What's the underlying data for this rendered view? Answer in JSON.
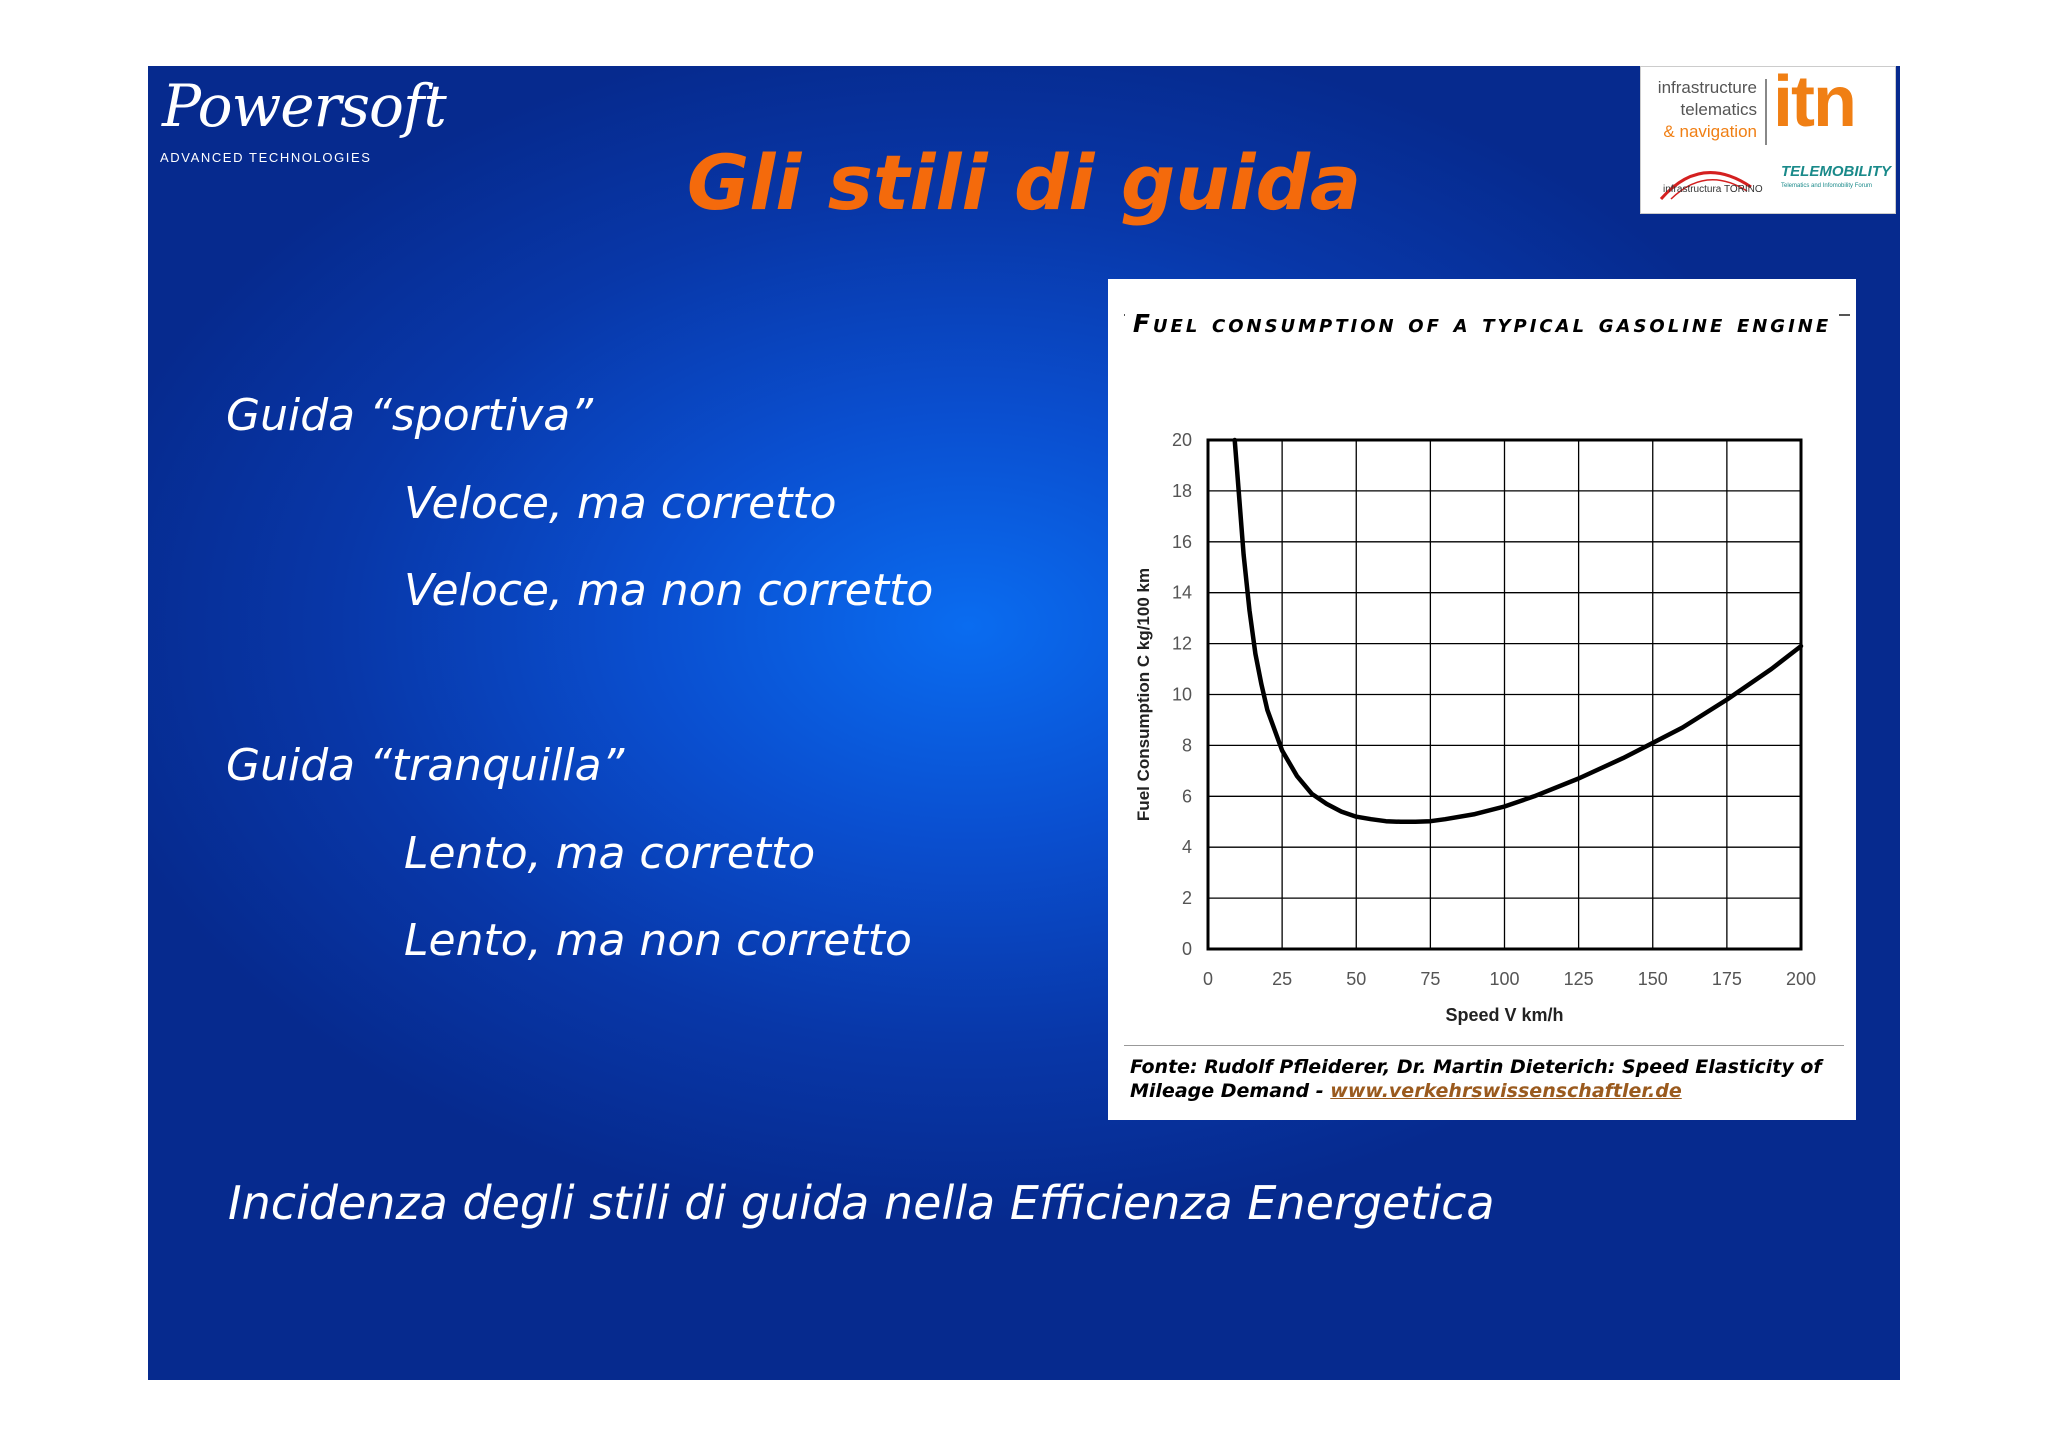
{
  "logo_left": {
    "word": "Powersoft",
    "sub": "ADVANCED TECHNOLOGIES"
  },
  "logo_right": {
    "lines": [
      "infrastructure",
      "telematics",
      "& navigation"
    ],
    "itn": "itn",
    "infrastructura": "infrastructura TORINO",
    "telemobility": "TELEMOBILITY",
    "telemobility_sub": "Telematics and Infomobility Forum"
  },
  "title": "Gli stili di guida",
  "bullets": [
    {
      "text": "Guida “sportiva”",
      "level": 0
    },
    {
      "text": "Veloce, ma corretto",
      "level": 1
    },
    {
      "text": "Veloce, ma non corretto",
      "level": 1
    },
    {
      "text": "Guida “tranquilla”",
      "level": 0
    },
    {
      "text": "Lento, ma corretto",
      "level": 1
    },
    {
      "text": "Lento, ma non corretto",
      "level": 1
    }
  ],
  "chart_data": {
    "type": "line",
    "title": "Fuel consumption of a typical gasoline engine",
    "xlabel": "Speed V  km/h",
    "ylabel": "Fuel Consumption  C  kg/100 km",
    "xlim": [
      0,
      200
    ],
    "ylim": [
      0,
      20
    ],
    "xticks": [
      0,
      25,
      50,
      75,
      100,
      125,
      150,
      175,
      200
    ],
    "yticks": [
      0,
      2,
      4,
      6,
      8,
      10,
      12,
      14,
      16,
      18,
      20
    ],
    "grid": true,
    "series": [
      {
        "x": [
          9,
          10,
          12,
          14,
          16,
          18,
          20,
          25,
          30,
          35,
          40,
          45,
          50,
          55,
          60,
          65,
          70,
          75,
          80,
          90,
          100,
          110,
          125,
          140,
          150,
          160,
          175,
          190,
          200
        ],
        "y": [
          20,
          18.5,
          15.5,
          13.3,
          11.6,
          10.4,
          9.4,
          7.8,
          6.8,
          6.1,
          5.7,
          5.4,
          5.2,
          5.1,
          5.02,
          5.0,
          5.0,
          5.02,
          5.1,
          5.3,
          5.6,
          6.0,
          6.7,
          7.5,
          8.1,
          8.7,
          9.8,
          11.0,
          11.9
        ]
      }
    ]
  },
  "source": {
    "text": "Fonte: Rudolf Pfleiderer, Dr. Martin Dieterich: Speed Elasticity of Mileage Demand - ",
    "link": "www.verkehrswissenschaftler.de"
  },
  "footer": "Incidenza degli stili di guida nella Efficienza Energetica"
}
